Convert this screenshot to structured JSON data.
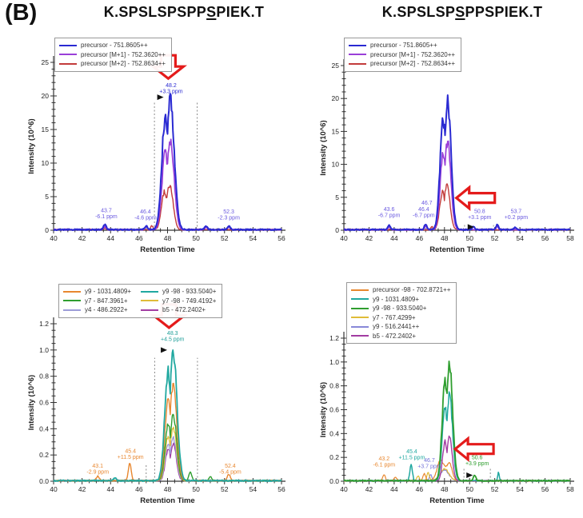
{
  "figure": {
    "label": "(B)"
  },
  "columns": [
    {
      "title": {
        "pre": "K.SPSLSPSPP",
        "phospho": "S",
        "post": "PIEK.T"
      }
    },
    {
      "title": {
        "pre": "K.SPSLSP",
        "phospho": "S",
        "post": "PPSPIEK.T"
      }
    }
  ],
  "chart_data": [
    {
      "id": "top_left",
      "type": "line",
      "position": "top-left",
      "xlabel": "Retention Time",
      "ylabel": "Intensity (10^6)",
      "xlim": [
        40,
        56
      ],
      "xticks": [
        40,
        42,
        44,
        46,
        48,
        50,
        52,
        54,
        56
      ],
      "ylim": [
        0,
        25
      ],
      "yticks": [
        0,
        5,
        10,
        15,
        20,
        25
      ],
      "ytick_decimals": 0,
      "yminor": 1,
      "xminor": 0.5,
      "legend": {
        "entries": [
          {
            "label": "precursor - 751.8605++",
            "color": "#2a2ad2"
          },
          {
            "label": "precursor [M+1] - 752.3620++",
            "color": "#9a3fd8"
          },
          {
            "label": "precursor [M+2] - 752.8634++",
            "color": "#c23b3b"
          }
        ]
      },
      "boundaries": [
        {
          "x": 47.08,
          "y1": 19.2
        },
        {
          "x": 50.08,
          "y1": 19.2
        }
      ],
      "series": [
        {
          "name": "precursor - 751.8605++",
          "color": "#2a2ad2",
          "z": 3,
          "width": 2,
          "peaks": [
            {
              "c": 48.1,
              "h": 19.3,
              "w": 0.34,
              "double": true
            }
          ],
          "bumps": [
            {
              "c": 43.6,
              "h": 0.75
            },
            {
              "c": 46.5,
              "h": 0.55
            },
            {
              "c": 50.7,
              "h": 0.5
            },
            {
              "c": 52.3,
              "h": 0.55
            }
          ]
        },
        {
          "name": "precursor [M+1] - 752.3620++",
          "color": "#9a3fd8",
          "z": 2,
          "width": 1.7,
          "peaks": [
            {
              "c": 48.1,
              "h": 13.4,
              "w": 0.32,
              "double": true
            }
          ],
          "bumps": [
            {
              "c": 43.6,
              "h": 0.45
            },
            {
              "c": 46.5,
              "h": 0.35
            },
            {
              "c": 50.7,
              "h": 0.3
            },
            {
              "c": 52.3,
              "h": 0.35
            }
          ]
        },
        {
          "name": "precursor [M+2] - 752.8634++",
          "color": "#c23b3b",
          "z": 1,
          "width": 1.4,
          "peaks": [
            {
              "c": 48.05,
              "h": 6.6,
              "w": 0.3,
              "double": true
            }
          ],
          "bumps": [
            {
              "c": 46.9,
              "h": 0.6,
              "w": 0.07
            },
            {
              "c": 43.6,
              "h": 0.2
            }
          ]
        }
      ],
      "annotations": [
        {
          "x": 48.25,
          "y": 21.3,
          "lines": [
            "48.2",
            "+3.3 ppm"
          ],
          "color": "#2a2ad2",
          "marker": {
            "x": 47.5,
            "y": 19.8
          }
        },
        {
          "x": 43.7,
          "y": 2.7,
          "lines": [
            "43.7",
            "-6.1 ppm"
          ],
          "color": "#6a5ae0"
        },
        {
          "x": 46.45,
          "y": 2.5,
          "lines": [
            "46.4",
            "-4.6 ppm"
          ],
          "color": "#6a5ae0"
        },
        {
          "x": 52.3,
          "y": 2.5,
          "lines": [
            "52.3",
            "-2.3 ppm"
          ],
          "color": "#6a5ae0"
        }
      ],
      "arrow": {
        "dir": "down",
        "x": 48.05,
        "y": 22.6
      }
    },
    {
      "id": "top_right",
      "type": "line",
      "position": "top-right",
      "xlabel": "Retention Time",
      "ylabel": "Intensity (10^6)",
      "xlim": [
        40,
        58
      ],
      "xticks": [
        40,
        42,
        44,
        46,
        48,
        50,
        52,
        54,
        56,
        58
      ],
      "ylim": [
        0,
        25
      ],
      "yticks": [
        0,
        5,
        10,
        15,
        20,
        25
      ],
      "ytick_decimals": 0,
      "yminor": 1,
      "xminor": 0.5,
      "legend": {
        "entries": [
          {
            "label": "precursor - 751.8605++",
            "color": "#2a2ad2"
          },
          {
            "label": "precursor [M+1] - 752.3620++",
            "color": "#9a3fd8"
          },
          {
            "label": "precursor [M+2] - 752.8634++",
            "color": "#c23b3b"
          }
        ]
      },
      "boundaries": [
        {
          "x": 49.6,
          "y1": 1.0
        },
        {
          "x": 51.9,
          "y1": 1.0
        }
      ],
      "series": [
        {
          "name": "precursor - 751.8605++",
          "color": "#2a2ad2",
          "z": 3,
          "width": 2,
          "peaks": [
            {
              "c": 48.15,
              "h": 19.4,
              "w": 0.34,
              "double": true
            }
          ],
          "bumps": [
            {
              "c": 43.6,
              "h": 0.7
            },
            {
              "c": 46.5,
              "h": 0.85
            },
            {
              "c": 50.3,
              "h": 0.5
            },
            {
              "c": 52.2,
              "h": 0.75
            },
            {
              "c": 53.6,
              "h": 0.3
            }
          ]
        },
        {
          "name": "precursor [M+1] - 752.3620++",
          "color": "#9a3fd8",
          "z": 2,
          "width": 1.7,
          "peaks": [
            {
              "c": 48.15,
              "h": 13.3,
              "w": 0.32,
              "double": true
            }
          ],
          "bumps": [
            {
              "c": 43.6,
              "h": 0.4
            },
            {
              "c": 46.5,
              "h": 0.5
            },
            {
              "c": 52.2,
              "h": 0.45
            }
          ]
        },
        {
          "name": "precursor [M+2] - 752.8634++",
          "color": "#c23b3b",
          "z": 1,
          "width": 1.4,
          "peaks": [
            {
              "c": 48.1,
              "h": 6.7,
              "w": 0.3,
              "double": true
            }
          ],
          "bumps": [
            {
              "c": 47.0,
              "h": 0.5,
              "w": 0.07
            }
          ]
        }
      ],
      "annotations": [
        {
          "x": 43.6,
          "y": 2.9,
          "lines": [
            "43.6",
            "-6.7 ppm"
          ],
          "color": "#6a5ae0"
        },
        {
          "x": 46.6,
          "y": 3.9,
          "lines": [
            "46.7"
          ],
          "color": "#6a5ae0"
        },
        {
          "x": 46.35,
          "y": 2.9,
          "lines": [
            "46.4",
            "-6.7 ppm"
          ],
          "color": "#6a5ae0"
        },
        {
          "x": 50.8,
          "y": 2.6,
          "lines": [
            "50.8",
            "+3.1 ppm"
          ],
          "color": "#6a5ae0",
          "marker": {
            "x": 50.1,
            "y": 0.5
          }
        },
        {
          "x": 53.7,
          "y": 2.6,
          "lines": [
            "53.7",
            "+0.2 ppm"
          ],
          "color": "#6a5ae0"
        }
      ],
      "arrow": {
        "dir": "left",
        "x": 48.95,
        "y": 4.9
      }
    },
    {
      "id": "bottom_left",
      "type": "line",
      "position": "bottom-left",
      "xlabel": "Retention Time",
      "ylabel": "Intensity (10^6)",
      "xlim": [
        40,
        56
      ],
      "xticks": [
        40,
        42,
        44,
        46,
        48,
        50,
        52,
        54,
        56
      ],
      "ylim": [
        0,
        1.2
      ],
      "yticks": [
        0,
        0.2,
        0.4,
        0.6,
        0.8,
        1.0,
        1.2
      ],
      "ytick_decimals": 1,
      "yminor": 0.05,
      "xminor": 0.5,
      "legend": {
        "entries": [
          {
            "label": "y9 - 1031.4809+",
            "color": "#e8872f"
          },
          {
            "label": "y7 - 847.3961+",
            "color": "#2f9e2f"
          },
          {
            "label": "y4 - 486.2922+",
            "color": "#9c9cd8"
          },
          {
            "label": "y9 -98 - 933.5040+",
            "color": "#20a8a0"
          },
          {
            "label": "y7 -98 - 749.4192+",
            "color": "#e0bc38"
          },
          {
            "label": "b5 - 472.2402+",
            "color": "#a23ca2"
          }
        ]
      },
      "boundaries": [
        {
          "x": 47.1,
          "y1": 0.94
        },
        {
          "x": 50.1,
          "y1": 0.94
        },
        {
          "x": 46.5,
          "y1": 0.13
        }
      ],
      "series": [
        {
          "name": "y9 - 1031.4809+",
          "color": "#e8872f",
          "z": 5,
          "width": 1.4,
          "peaks": [
            {
              "c": 48.3,
              "h": 0.73,
              "w": 0.31,
              "double": true
            }
          ],
          "bumps": [
            {
              "c": 43.1,
              "h": 0.035
            },
            {
              "c": 45.35,
              "h": 0.135
            },
            {
              "c": 52.3,
              "h": 0.05
            }
          ]
        },
        {
          "name": "y7 - 847.3961+",
          "color": "#2f9e2f",
          "z": 4,
          "width": 1.4,
          "peaks": [
            {
              "c": 48.3,
              "h": 0.5,
              "w": 0.3,
              "double": true
            }
          ],
          "bumps": [
            {
              "c": 49.6,
              "h": 0.065
            },
            {
              "c": 51.0,
              "h": 0.03
            }
          ]
        },
        {
          "name": "y4 - 486.2922+",
          "color": "#9c9cd8",
          "z": 2,
          "width": 1.3,
          "peaks": [
            {
              "c": 48.3,
              "h": 0.33,
              "w": 0.28,
              "double": true
            }
          ],
          "bumps": []
        },
        {
          "name": "y9 -98 - 933.5040+",
          "color": "#20a8a0",
          "z": 6,
          "width": 1.8,
          "peaks": [
            {
              "c": 48.3,
              "h": 0.97,
              "w": 0.33,
              "double": true
            }
          ],
          "bumps": [
            {
              "c": 44.3,
              "h": 0.02
            }
          ]
        },
        {
          "name": "y7 -98 - 749.4192+",
          "color": "#e0bc38",
          "z": 3,
          "width": 1.3,
          "peaks": [
            {
              "c": 48.3,
              "h": 0.4,
              "w": 0.29,
              "double": true
            }
          ],
          "bumps": []
        },
        {
          "name": "b5 - 472.2402+",
          "color": "#a23ca2",
          "z": 1,
          "width": 1.3,
          "peaks": [
            {
              "c": 48.3,
              "h": 0.28,
              "w": 0.27,
              "double": true
            }
          ],
          "bumps": []
        }
      ],
      "annotations": [
        {
          "x": 48.35,
          "y": 1.115,
          "lines": [
            "48.3",
            "+4.5 ppm"
          ],
          "color": "#1f9e98",
          "marker": {
            "x": 47.75,
            "y": 1.0
          }
        },
        {
          "x": 43.1,
          "y": 0.105,
          "lines": [
            "43.1",
            "-2.9 ppm"
          ],
          "color": "#e8872f"
        },
        {
          "x": 45.4,
          "y": 0.215,
          "lines": [
            "45.4",
            "+11.5 ppm"
          ],
          "color": "#e8872f"
        },
        {
          "x": 52.4,
          "y": 0.105,
          "lines": [
            "52.4",
            "-5.4 ppm"
          ],
          "color": "#e8872f"
        }
      ],
      "arrow": {
        "dir": "down",
        "x": 48.1,
        "y": 1.17
      }
    },
    {
      "id": "bottom_right",
      "type": "line",
      "position": "bottom-right",
      "xlabel": "Retention Time",
      "ylabel": "Intensity (10^6)",
      "xlim": [
        40,
        58
      ],
      "xticks": [
        40,
        42,
        44,
        46,
        48,
        50,
        52,
        54,
        56,
        58
      ],
      "ylim": [
        0,
        1.2
      ],
      "yticks": [
        0,
        0.2,
        0.4,
        0.6,
        0.8,
        1.0,
        1.2
      ],
      "ytick_decimals": 1,
      "yminor": 0.05,
      "xminor": 0.5,
      "legend": {
        "entries": [
          {
            "label": "precursor -98 - 702.8721++",
            "color": "#e8872f"
          },
          {
            "label": "y9 - 1031.4809+",
            "color": "#20a8a0"
          },
          {
            "label": "y9 -98 - 933.5040+",
            "color": "#2f9e2f"
          },
          {
            "label": "y7 - 767.4299+",
            "color": "#e0bc38"
          },
          {
            "label": "y9 - 516.2441++",
            "color": "#8888d8"
          },
          {
            "label": "b5 - 472.2402+",
            "color": "#a23ca2"
          }
        ]
      },
      "boundaries": [
        {
          "x": 49.55,
          "y1": 0.11
        },
        {
          "x": 51.65,
          "y1": 0.11
        }
      ],
      "series": [
        {
          "name": "precursor -98 - 702.8721++",
          "color": "#e8872f",
          "z": 3,
          "width": 1.2,
          "peaks": [
            {
              "c": 47.7,
              "h": 0.17,
              "w": 0.28
            },
            {
              "c": 48.4,
              "h": 0.14,
              "w": 0.22
            }
          ],
          "bumps": [
            {
              "c": 43.2,
              "h": 0.05
            },
            {
              "c": 44.1,
              "h": 0.03
            },
            {
              "c": 46.4,
              "h": 0.06
            }
          ]
        },
        {
          "name": "y9 - 1031.4809+",
          "color": "#20a8a0",
          "z": 5,
          "width": 1.5,
          "peaks": [
            {
              "c": 48.3,
              "h": 0.72,
              "w": 0.3,
              "double": true
            }
          ],
          "bumps": [
            {
              "c": 45.35,
              "h": 0.135
            },
            {
              "c": 52.3,
              "h": 0.07,
              "w": 0.06
            }
          ]
        },
        {
          "name": "y9 -98 - 933.5040+",
          "color": "#2f9e2f",
          "z": 6,
          "width": 1.8,
          "peaks": [
            {
              "c": 48.3,
              "h": 0.96,
              "w": 0.32,
              "double": true
            }
          ],
          "bumps": [
            {
              "c": 50.4,
              "h": 0.045
            }
          ]
        },
        {
          "name": "y7 - 767.4299+",
          "color": "#e0bc38",
          "z": 2,
          "width": 1.2,
          "peaks": [
            {
              "c": 48.0,
              "h": 0.1,
              "w": 0.35
            }
          ],
          "bumps": [
            {
              "c": 46.7,
              "h": 0.07
            },
            {
              "c": 45.9,
              "h": 0.04
            }
          ]
        },
        {
          "name": "y9 - 516.2441++",
          "color": "#8888d8",
          "z": 1,
          "width": 1.2,
          "peaks": [
            {
              "c": 48.0,
              "h": 0.09,
              "w": 0.35
            }
          ],
          "bumps": [
            {
              "c": 46.9,
              "h": 0.05
            }
          ]
        },
        {
          "name": "b5 - 472.2402+",
          "color": "#a23ca2",
          "z": 4,
          "width": 1.4,
          "peaks": [
            {
              "c": 48.3,
              "h": 0.38,
              "w": 0.26,
              "double": true
            }
          ],
          "bumps": []
        }
      ],
      "annotations": [
        {
          "x": 43.2,
          "y": 0.175,
          "lines": [
            "43.2",
            "-6.1 ppm"
          ],
          "color": "#e8872f"
        },
        {
          "x": 45.4,
          "y": 0.235,
          "lines": [
            "45.4",
            "+11.5 ppm"
          ],
          "color": "#20a8a0"
        },
        {
          "x": 46.8,
          "y": 0.16,
          "lines": [
            "46.7",
            "+3.7 ppm"
          ],
          "color": "#7070d8"
        },
        {
          "x": 50.6,
          "y": 0.185,
          "lines": [
            "50.6",
            "+3.9 ppm"
          ],
          "color": "#2f9e2f",
          "marker": {
            "x": 50.0,
            "y": 0.05
          }
        }
      ],
      "arrow": {
        "dir": "left",
        "x": 48.85,
        "y": 0.27
      }
    }
  ]
}
